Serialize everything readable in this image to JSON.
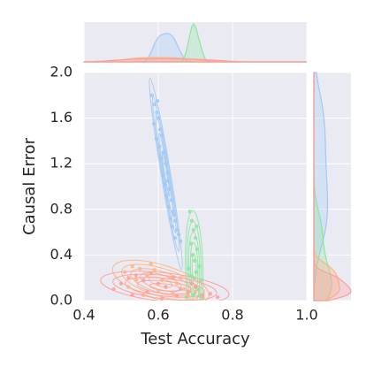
{
  "chart_data": {
    "type": "scatter",
    "x_label": "Test Accuracy",
    "y_label": "Causal Error",
    "xlim": [
      0.4,
      1.0
    ],
    "xticks": [
      0.4,
      0.6,
      0.8,
      {
        "value": 1.0,
        "label": "1.0"
      }
    ],
    "ylim": [
      0,
      2.0
    ],
    "yticks": [
      {
        "value": 0,
        "label": "0.0"
      },
      0.4,
      0.8,
      1.2,
      1.6,
      {
        "value": 2.0,
        "label": "2.0"
      }
    ],
    "grid": true,
    "series": [
      {
        "color": "#a1c9f4",
        "x": [
          0.583,
          0.59,
          0.596,
          0.588,
          0.6,
          0.605,
          0.595,
          0.61,
          0.603,
          0.615,
          0.608,
          0.62,
          0.612,
          0.625,
          0.618,
          0.63,
          0.622,
          0.635,
          0.628,
          0.64,
          0.633,
          0.645,
          0.638,
          0.65,
          0.655,
          0.645,
          0.66,
          0.598,
          0.625,
          0.642
        ],
        "values": [
          1.8,
          1.72,
          1.65,
          1.55,
          1.6,
          1.5,
          1.42,
          1.45,
          1.35,
          1.3,
          1.25,
          1.2,
          1.1,
          1.12,
          1.02,
          0.98,
          0.92,
          0.88,
          0.82,
          0.78,
          0.72,
          0.7,
          0.65,
          0.62,
          0.58,
          0.55,
          0.52,
          1.75,
          1.05,
          0.75
        ]
      },
      {
        "color": "#8de5a1",
        "x": [
          0.685,
          0.69,
          0.695,
          0.7,
          0.688,
          0.705,
          0.692,
          0.698,
          0.71,
          0.682,
          0.702,
          0.695,
          0.715,
          0.69,
          0.7,
          0.708,
          0.68,
          0.697,
          0.693,
          0.712,
          0.675,
          0.72,
          0.703,
          0.687
        ],
        "values": [
          0.78,
          0.7,
          0.62,
          0.55,
          0.5,
          0.45,
          0.4,
          0.35,
          0.3,
          0.28,
          0.25,
          0.2,
          0.18,
          0.15,
          0.12,
          0.1,
          0.08,
          0.06,
          0.05,
          0.04,
          0.03,
          0.02,
          0.65,
          0.22
        ]
      },
      {
        "color": "#ffb482",
        "x": [
          0.51,
          0.53,
          0.55,
          0.57,
          0.59,
          0.61,
          0.63,
          0.65,
          0.67,
          0.52,
          0.56,
          0.6,
          0.64,
          0.68,
          0.58,
          0.62,
          0.66,
          0.54,
          0.7,
          0.72
        ],
        "values": [
          0.25,
          0.3,
          0.28,
          0.22,
          0.27,
          0.18,
          0.2,
          0.15,
          0.1,
          0.12,
          0.05,
          0.08,
          0.06,
          0.04,
          0.32,
          0.12,
          0.2,
          0.18,
          0.08,
          0.03
        ]
      },
      {
        "color": "#ff9f9b",
        "x": [
          0.48,
          0.5,
          0.52,
          0.54,
          0.56,
          0.58,
          0.6,
          0.62,
          0.64,
          0.66,
          0.68,
          0.7,
          0.72,
          0.74,
          0.76,
          0.53,
          0.57,
          0.61,
          0.65,
          0.69
        ],
        "values": [
          0.1,
          0.15,
          0.2,
          0.22,
          0.18,
          0.24,
          0.15,
          0.12,
          0.2,
          0.1,
          0.08,
          0.12,
          0.05,
          0.06,
          0.03,
          0.05,
          0.08,
          0.02,
          0.04,
          0.15
        ]
      }
    ]
  }
}
